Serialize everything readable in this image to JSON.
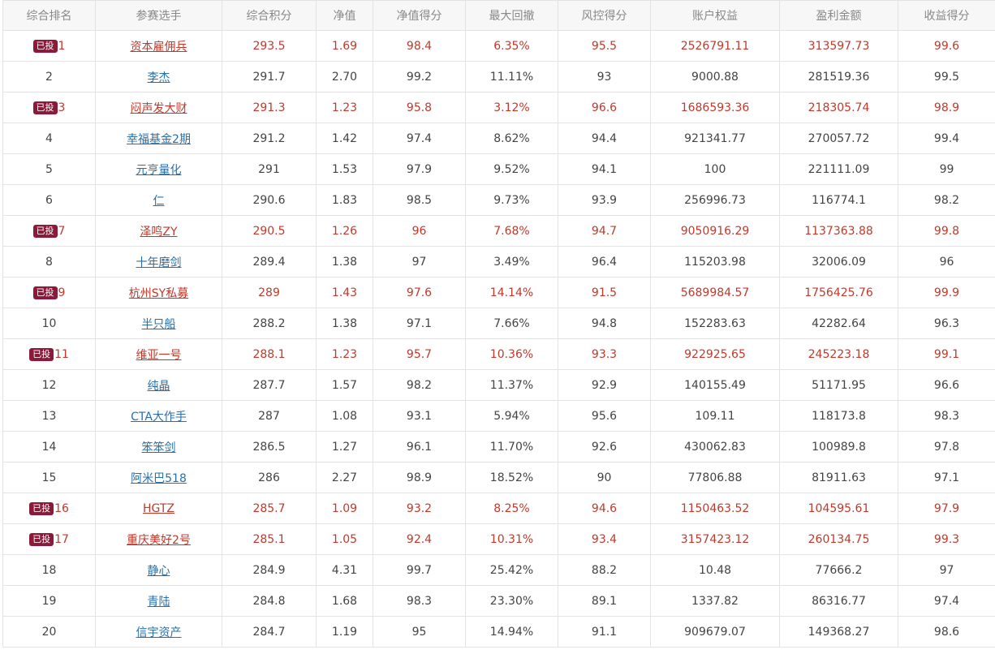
{
  "colors": {
    "invested_text": "#c0392b",
    "normal_text": "#444444",
    "link": "#2a6fa8",
    "badge_bg": "#8b1a3a",
    "header_bg": "#f7f7f7",
    "border": "#e3e3e3"
  },
  "table": {
    "headers": [
      "综合排名",
      "参赛选手",
      "综合积分",
      "净值",
      "净值得分",
      "最大回撤",
      "风控得分",
      "账户权益",
      "盈利金额",
      "收益得分"
    ],
    "badge_label": "已投",
    "rows": [
      {
        "rank": "1",
        "invested": true,
        "name": "资本雇佣兵",
        "score": "293.5",
        "nav": "1.69",
        "nav_score": "98.4",
        "max_dd": "6.35%",
        "risk_score": "95.5",
        "equity": "2526791.11",
        "profit": "313597.73",
        "return_score": "99.6"
      },
      {
        "rank": "2",
        "invested": false,
        "name": "李杰",
        "score": "291.7",
        "nav": "2.70",
        "nav_score": "99.2",
        "max_dd": "11.11%",
        "risk_score": "93",
        "equity": "9000.88",
        "profit": "281519.36",
        "return_score": "99.5"
      },
      {
        "rank": "3",
        "invested": true,
        "name": "闷声发大财",
        "score": "291.3",
        "nav": "1.23",
        "nav_score": "95.8",
        "max_dd": "3.12%",
        "risk_score": "96.6",
        "equity": "1686593.36",
        "profit": "218305.74",
        "return_score": "98.9"
      },
      {
        "rank": "4",
        "invested": false,
        "name": "幸福基金2期",
        "score": "291.2",
        "nav": "1.42",
        "nav_score": "97.4",
        "max_dd": "8.62%",
        "risk_score": "94.4",
        "equity": "921341.77",
        "profit": "270057.72",
        "return_score": "99.4"
      },
      {
        "rank": "5",
        "invested": false,
        "name": "元亨量化",
        "score": "291",
        "nav": "1.53",
        "nav_score": "97.9",
        "max_dd": "9.52%",
        "risk_score": "94.1",
        "equity": "100",
        "profit": "221111.09",
        "return_score": "99"
      },
      {
        "rank": "6",
        "invested": false,
        "name": "仁",
        "score": "290.6",
        "nav": "1.83",
        "nav_score": "98.5",
        "max_dd": "9.73%",
        "risk_score": "93.9",
        "equity": "256996.73",
        "profit": "116774.1",
        "return_score": "98.2"
      },
      {
        "rank": "7",
        "invested": true,
        "name": "泽鸣ZY",
        "score": "290.5",
        "nav": "1.26",
        "nav_score": "96",
        "max_dd": "7.68%",
        "risk_score": "94.7",
        "equity": "9050916.29",
        "profit": "1137363.88",
        "return_score": "99.8"
      },
      {
        "rank": "8",
        "invested": false,
        "name": "十年磨剑",
        "score": "289.4",
        "nav": "1.38",
        "nav_score": "97",
        "max_dd": "3.49%",
        "risk_score": "96.4",
        "equity": "115203.98",
        "profit": "32006.09",
        "return_score": "96"
      },
      {
        "rank": "9",
        "invested": true,
        "name": "杭州SY私募",
        "score": "289",
        "nav": "1.43",
        "nav_score": "97.6",
        "max_dd": "14.14%",
        "risk_score": "91.5",
        "equity": "5689984.57",
        "profit": "1756425.76",
        "return_score": "99.9"
      },
      {
        "rank": "10",
        "invested": false,
        "name": "半只船",
        "score": "288.2",
        "nav": "1.38",
        "nav_score": "97.1",
        "max_dd": "7.66%",
        "risk_score": "94.8",
        "equity": "152283.63",
        "profit": "42282.64",
        "return_score": "96.3"
      },
      {
        "rank": "11",
        "invested": true,
        "name": "维亚一号",
        "score": "288.1",
        "nav": "1.23",
        "nav_score": "95.7",
        "max_dd": "10.36%",
        "risk_score": "93.3",
        "equity": "922925.65",
        "profit": "245223.18",
        "return_score": "99.1"
      },
      {
        "rank": "12",
        "invested": false,
        "name": "纯晶",
        "score": "287.7",
        "nav": "1.57",
        "nav_score": "98.2",
        "max_dd": "11.37%",
        "risk_score": "92.9",
        "equity": "140155.49",
        "profit": "51171.95",
        "return_score": "96.6"
      },
      {
        "rank": "13",
        "invested": false,
        "name": "CTA大作手",
        "score": "287",
        "nav": "1.08",
        "nav_score": "93.1",
        "max_dd": "5.94%",
        "risk_score": "95.6",
        "equity": "109.11",
        "profit": "118173.8",
        "return_score": "98.3"
      },
      {
        "rank": "14",
        "invested": false,
        "name": "笨笨剑",
        "score": "286.5",
        "nav": "1.27",
        "nav_score": "96.1",
        "max_dd": "11.70%",
        "risk_score": "92.6",
        "equity": "430062.83",
        "profit": "100989.8",
        "return_score": "97.8"
      },
      {
        "rank": "15",
        "invested": false,
        "name": "阿米巴518",
        "score": "286",
        "nav": "2.27",
        "nav_score": "98.9",
        "max_dd": "18.52%",
        "risk_score": "90",
        "equity": "77806.88",
        "profit": "81911.63",
        "return_score": "97.1"
      },
      {
        "rank": "16",
        "invested": true,
        "name": "HGTZ",
        "score": "285.7",
        "nav": "1.09",
        "nav_score": "93.2",
        "max_dd": "8.25%",
        "risk_score": "94.6",
        "equity": "1150463.52",
        "profit": "104595.61",
        "return_score": "97.9"
      },
      {
        "rank": "17",
        "invested": true,
        "name": "重庆美好2号",
        "score": "285.1",
        "nav": "1.05",
        "nav_score": "92.4",
        "max_dd": "10.31%",
        "risk_score": "93.4",
        "equity": "3157423.12",
        "profit": "260134.75",
        "return_score": "99.3"
      },
      {
        "rank": "18",
        "invested": false,
        "name": "静心",
        "score": "284.9",
        "nav": "4.31",
        "nav_score": "99.7",
        "max_dd": "25.42%",
        "risk_score": "88.2",
        "equity": "10.48",
        "profit": "77666.2",
        "return_score": "97"
      },
      {
        "rank": "19",
        "invested": false,
        "name": "青陆",
        "score": "284.8",
        "nav": "1.68",
        "nav_score": "98.3",
        "max_dd": "23.30%",
        "risk_score": "89.1",
        "equity": "1337.82",
        "profit": "86316.77",
        "return_score": "97.4"
      },
      {
        "rank": "20",
        "invested": false,
        "name": "信宇资产",
        "score": "284.7",
        "nav": "1.19",
        "nav_score": "95",
        "max_dd": "14.94%",
        "risk_score": "91.1",
        "equity": "909679.07",
        "profit": "149368.27",
        "return_score": "98.6"
      }
    ]
  }
}
